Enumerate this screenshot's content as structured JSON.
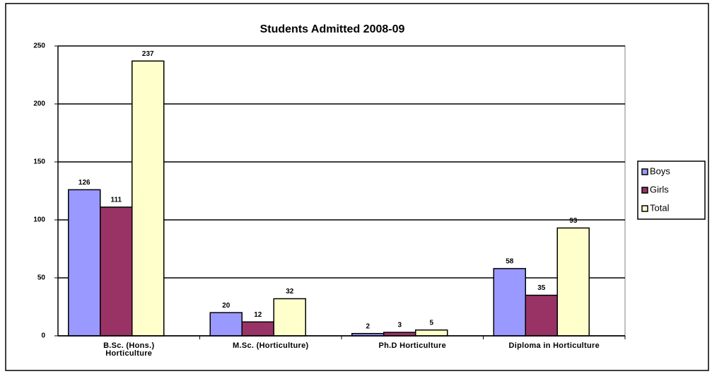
{
  "chart_data": {
    "type": "bar",
    "title": "Students Admitted 2008-09",
    "categories": [
      "B.Sc. (Hons.) Horticulture",
      "M.Sc. (Horticulture)",
      "Ph.D Horticulture",
      "Diploma in Horticulture"
    ],
    "series": [
      {
        "name": "Boys",
        "color": "#9999ff",
        "values": [
          126,
          20,
          2,
          58
        ]
      },
      {
        "name": "Girls",
        "color": "#993366",
        "values": [
          111,
          12,
          3,
          35
        ]
      },
      {
        "name": "Total",
        "color": "#ffffcc",
        "values": [
          237,
          32,
          5,
          93
        ]
      }
    ],
    "ylim": [
      0,
      250
    ],
    "yticks": [
      0,
      50,
      100,
      150,
      200,
      250
    ],
    "grid": true,
    "legend": "right"
  }
}
